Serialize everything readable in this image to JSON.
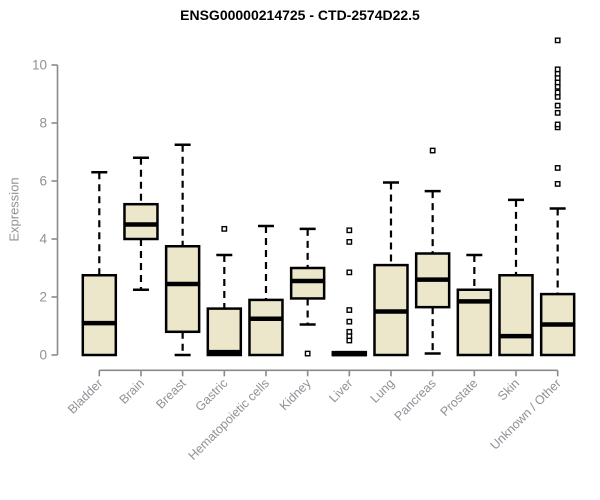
{
  "chart_data": {
    "type": "boxplot",
    "title": "ENSG00000214725 - CTD-2574D22.5",
    "ylabel": "Expression",
    "ylim": [
      0,
      11.3
    ],
    "yticks": [
      0,
      2,
      4,
      6,
      8,
      10
    ],
    "grid": false,
    "legend": null,
    "categories": [
      "Bladder",
      "Brain",
      "Breast",
      "Gastric",
      "Hematopoietic cells",
      "Kidney",
      "Liver",
      "Lung",
      "Pancreas",
      "Prostate",
      "Skin",
      "Unknown / Other"
    ],
    "series": [
      {
        "name": "Bladder",
        "whisker_low": 0,
        "q1": 0,
        "median": 1.1,
        "q3": 2.75,
        "whisker_high": 6.3,
        "outliers": []
      },
      {
        "name": "Brain",
        "whisker_low": 2.25,
        "q1": 4.0,
        "median": 4.5,
        "q3": 5.2,
        "whisker_high": 6.8,
        "outliers": []
      },
      {
        "name": "Breast",
        "whisker_low": 0,
        "q1": 0.8,
        "median": 2.45,
        "q3": 3.75,
        "whisker_high": 7.25,
        "outliers": []
      },
      {
        "name": "Gastric",
        "whisker_low": 0,
        "q1": 0,
        "median": 0.1,
        "q3": 1.6,
        "whisker_high": 3.45,
        "outliers": [
          4.35
        ]
      },
      {
        "name": "Hematopoietic cells",
        "whisker_low": 0,
        "q1": 0,
        "median": 1.25,
        "q3": 1.9,
        "whisker_high": 4.45,
        "outliers": []
      },
      {
        "name": "Kidney",
        "whisker_low": 1.05,
        "q1": 1.95,
        "median": 2.55,
        "q3": 3.0,
        "whisker_high": 4.35,
        "outliers": [
          0.05
        ]
      },
      {
        "name": "Liver",
        "whisker_low": 0,
        "q1": 0,
        "median": 0.03,
        "q3": 0.1,
        "whisker_high": 0.1,
        "outliers": [
          0.5,
          0.65,
          0.8,
          1.15,
          1.55,
          2.85,
          3.9,
          4.3
        ]
      },
      {
        "name": "Lung",
        "whisker_low": 0,
        "q1": 0,
        "median": 1.5,
        "q3": 3.1,
        "whisker_high": 5.95,
        "outliers": []
      },
      {
        "name": "Pancreas",
        "whisker_low": 0.05,
        "q1": 1.65,
        "median": 2.6,
        "q3": 3.5,
        "whisker_high": 5.65,
        "outliers": [
          7.05
        ]
      },
      {
        "name": "Prostate",
        "whisker_low": 0,
        "q1": 0,
        "median": 1.85,
        "q3": 2.25,
        "whisker_high": 3.45,
        "outliers": []
      },
      {
        "name": "Skin",
        "whisker_low": 0,
        "q1": 0,
        "median": 0.65,
        "q3": 2.75,
        "whisker_high": 5.35,
        "outliers": []
      },
      {
        "name": "Unknown / Other",
        "whisker_low": 0,
        "q1": 0,
        "median": 1.05,
        "q3": 2.1,
        "whisker_high": 5.05,
        "outliers": [
          5.9,
          6.45,
          7.85,
          7.95,
          8.35,
          8.6,
          8.9,
          9.05,
          9.25,
          9.4,
          9.55,
          9.7,
          9.85,
          10.85
        ]
      }
    ],
    "colors": {
      "box_fill": "#ece7cb",
      "box_stroke": "#000000",
      "median": "#000000",
      "whisker": "#000000",
      "axis": "#8a8a8a",
      "tick_text": "#8e9196",
      "title_text": "#000000",
      "background": "#ffffff"
    }
  }
}
